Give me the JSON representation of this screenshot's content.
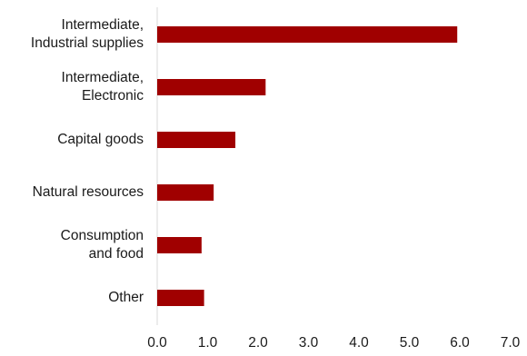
{
  "chart_data": {
    "type": "bar",
    "orientation": "horizontal",
    "categories": [
      [
        "Intermediate,",
        "Industrial supplies"
      ],
      [
        "Intermediate,",
        "Electronic"
      ],
      [
        "Capital goods"
      ],
      [
        "Natural resources"
      ],
      [
        "Consumption",
        "and food"
      ],
      [
        "Other"
      ]
    ],
    "values": [
      5.95,
      2.15,
      1.55,
      1.12,
      0.88,
      0.93
    ],
    "xlim": [
      0,
      7
    ],
    "x_ticks": [
      "0.0",
      "1.0",
      "2.0",
      "3.0",
      "4.0",
      "5.0",
      "6.0",
      "7.0"
    ],
    "grid": false,
    "legend": "none",
    "bar_color": "#a00000",
    "axis_color": "#d9d9d9"
  }
}
